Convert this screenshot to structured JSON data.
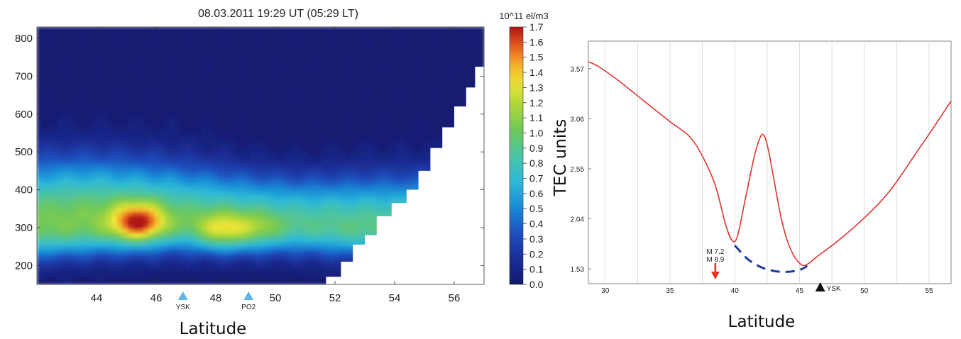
{
  "chart_data": [
    {
      "type": "heatmap",
      "title": "08.03.2011 19:29 UT (05:29 LT)",
      "xlabel": "Latitude",
      "ylabel": "",
      "xlim": [
        42,
        57
      ],
      "ylim": [
        150,
        830
      ],
      "xticks": [
        44,
        46,
        48,
        50,
        52,
        54,
        56
      ],
      "yticks": [
        200,
        300,
        400,
        500,
        600,
        700,
        800
      ],
      "colorbar": {
        "unit_label": "10^11 el/m3",
        "min": 0.0,
        "max": 1.7,
        "ticks": [
          "0.0",
          "0.1",
          "0.2",
          "0.3",
          "0.4",
          "0.5",
          "0.6",
          "0.7",
          "0.8",
          "0.9",
          "1.0",
          "1.1",
          "1.2",
          "1.3",
          "1.4",
          "1.5",
          "1.6",
          "1.7"
        ]
      },
      "peaks": [
        {
          "lat": 45.4,
          "alt": 315,
          "value": 1.65
        },
        {
          "lat": 48.2,
          "alt": 290,
          "value": 1.35
        },
        {
          "lat": 49.4,
          "alt": 295,
          "value": 1.15
        }
      ],
      "station_markers": [
        {
          "label": "YSK",
          "lat": 46.9
        },
        {
          "label": "PO2",
          "lat": 49.1
        }
      ],
      "data_coverage_edge": [
        {
          "lat": 51.7,
          "alt_max": 170
        },
        {
          "lat": 52.2,
          "alt_max": 210
        },
        {
          "lat": 52.6,
          "alt_max": 255
        },
        {
          "lat": 53.0,
          "alt_max": 280
        },
        {
          "lat": 53.4,
          "alt_max": 330
        },
        {
          "lat": 53.9,
          "alt_max": 365
        },
        {
          "lat": 54.4,
          "alt_max": 400
        },
        {
          "lat": 54.8,
          "alt_max": 450
        },
        {
          "lat": 55.2,
          "alt_max": 510
        },
        {
          "lat": 55.6,
          "alt_max": 565
        },
        {
          "lat": 56.0,
          "alt_max": 620
        },
        {
          "lat": 56.4,
          "alt_max": 670
        },
        {
          "lat": 56.7,
          "alt_max": 725
        },
        {
          "lat": 57.0,
          "alt_max": 830
        }
      ]
    },
    {
      "type": "line",
      "title": "",
      "xlabel": "Latitude",
      "ylabel": "TEC units",
      "xlim": [
        28.7,
        56.7
      ],
      "ylim": [
        1.38,
        3.85
      ],
      "xticks": [
        30,
        35,
        40,
        45,
        50,
        55
      ],
      "yticks": [
        "1.53",
        "2.04",
        "2.55",
        "3.06",
        "3.57"
      ],
      "grid": "vertical",
      "series": [
        {
          "style": "solid-red",
          "x": [
            28.7,
            29.5,
            31,
            33,
            35,
            36.5,
            37.5,
            38.5,
            39.3,
            39.8,
            40.2,
            40.8,
            41.5,
            42.0,
            42.3,
            42.6,
            43.0,
            43.5,
            44.0,
            44.5,
            45.0,
            45.5,
            46.5,
            48,
            50,
            52,
            54,
            55.5,
            56.7
          ],
          "y": [
            3.64,
            3.59,
            3.45,
            3.24,
            3.03,
            2.88,
            2.68,
            2.38,
            1.98,
            1.82,
            1.86,
            2.23,
            2.67,
            2.88,
            2.88,
            2.74,
            2.46,
            2.1,
            1.84,
            1.68,
            1.59,
            1.57,
            1.67,
            1.82,
            2.05,
            2.33,
            2.71,
            3.0,
            3.24
          ]
        },
        {
          "style": "dashed-blue",
          "x": [
            40.0,
            41.0,
            42.0,
            43.0,
            44.0,
            45.0,
            45.6
          ],
          "y": [
            1.77,
            1.63,
            1.55,
            1.51,
            1.5,
            1.52,
            1.56
          ]
        }
      ],
      "annotations": [
        {
          "text_lines": [
            "M 7.2",
            "M 8.9"
          ],
          "x": 38.5,
          "marker": "red-down-arrow"
        },
        {
          "text": "YSK",
          "x": 46.6,
          "marker": "black-up-triangle"
        }
      ]
    }
  ]
}
